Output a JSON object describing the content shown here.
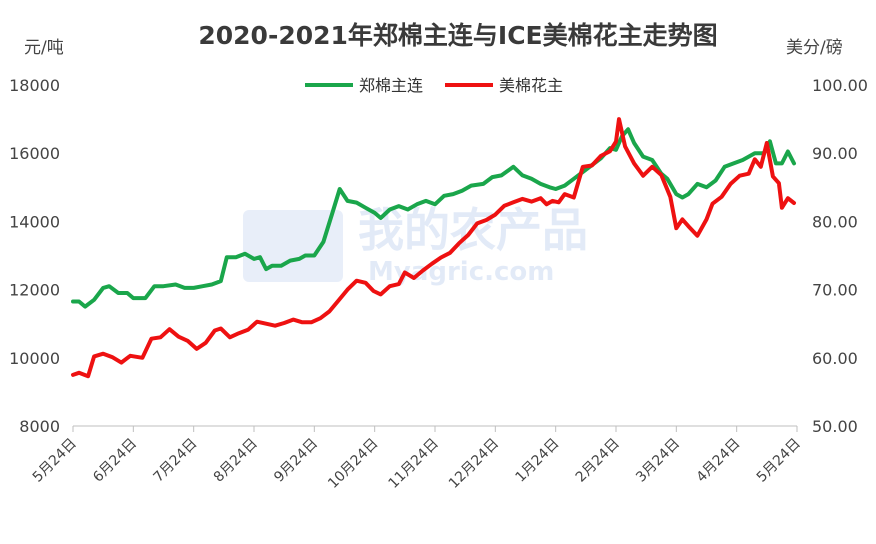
{
  "chart_data": {
    "type": "line",
    "title": "2020-2021年郑棉主连与ICE美棉花主走势图",
    "y_left_unit": "元/吨",
    "y_right_unit": "美分/磅",
    "ylim_left": [
      8000,
      18000
    ],
    "ylim_right": [
      50,
      100
    ],
    "yticks_left": [
      "8000",
      "10000",
      "12000",
      "14000",
      "16000",
      "18000"
    ],
    "yticks_right": [
      "50.00",
      "60.00",
      "70.00",
      "80.00",
      "90.00",
      "100.00"
    ],
    "x_ticks": [
      "5月24日",
      "6月24日",
      "7月24日",
      "8月24日",
      "9月24日",
      "10月24日",
      "11月24日",
      "12月24日",
      "1月24日",
      "2月24日",
      "3月24日",
      "4月24日",
      "5月24日"
    ],
    "grid": false,
    "legend_position": "top-center",
    "series": [
      {
        "name": "郑棉主连",
        "axis": "left",
        "color": "#1aa64b",
        "points": [
          [
            0,
            11650
          ],
          [
            0.1,
            11650
          ],
          [
            0.2,
            11500
          ],
          [
            0.35,
            11700
          ],
          [
            0.5,
            12050
          ],
          [
            0.6,
            12100
          ],
          [
            0.75,
            11900
          ],
          [
            0.9,
            11900
          ],
          [
            1.0,
            11750
          ],
          [
            1.2,
            11750
          ],
          [
            1.35,
            12100
          ],
          [
            1.5,
            12100
          ],
          [
            1.7,
            12150
          ],
          [
            1.85,
            12050
          ],
          [
            2.0,
            12050
          ],
          [
            2.15,
            12100
          ],
          [
            2.3,
            12150
          ],
          [
            2.45,
            12250
          ],
          [
            2.55,
            12950
          ],
          [
            2.7,
            12950
          ],
          [
            2.85,
            13050
          ],
          [
            3.0,
            12900
          ],
          [
            3.1,
            12950
          ],
          [
            3.2,
            12600
          ],
          [
            3.3,
            12700
          ],
          [
            3.45,
            12700
          ],
          [
            3.6,
            12850
          ],
          [
            3.75,
            12900
          ],
          [
            3.85,
            13000
          ],
          [
            4.0,
            13000
          ],
          [
            4.15,
            13400
          ],
          [
            4.3,
            14250
          ],
          [
            4.42,
            14950
          ],
          [
            4.55,
            14600
          ],
          [
            4.7,
            14550
          ],
          [
            4.85,
            14400
          ],
          [
            5.0,
            14250
          ],
          [
            5.1,
            14100
          ],
          [
            5.25,
            14350
          ],
          [
            5.4,
            14450
          ],
          [
            5.55,
            14350
          ],
          [
            5.7,
            14500
          ],
          [
            5.85,
            14600
          ],
          [
            6.0,
            14500
          ],
          [
            6.15,
            14750
          ],
          [
            6.3,
            14800
          ],
          [
            6.45,
            14900
          ],
          [
            6.6,
            15050
          ],
          [
            6.8,
            15100
          ],
          [
            6.95,
            15300
          ],
          [
            7.1,
            15350
          ],
          [
            7.3,
            15600
          ],
          [
            7.45,
            15350
          ],
          [
            7.6,
            15250
          ],
          [
            7.75,
            15100
          ],
          [
            7.9,
            15000
          ],
          [
            8.0,
            14950
          ],
          [
            8.15,
            15050
          ],
          [
            8.3,
            15250
          ],
          [
            8.45,
            15450
          ],
          [
            8.6,
            15650
          ],
          [
            8.75,
            15850
          ],
          [
            8.9,
            16150
          ],
          [
            9.0,
            16100
          ],
          [
            9.1,
            16500
          ],
          [
            9.2,
            16700
          ],
          [
            9.3,
            16300
          ],
          [
            9.45,
            15900
          ],
          [
            9.6,
            15800
          ],
          [
            9.75,
            15400
          ],
          [
            9.85,
            15250
          ],
          [
            10.0,
            14800
          ],
          [
            10.1,
            14700
          ],
          [
            10.2,
            14800
          ],
          [
            10.35,
            15100
          ],
          [
            10.5,
            15000
          ],
          [
            10.65,
            15200
          ],
          [
            10.8,
            15600
          ],
          [
            10.95,
            15700
          ],
          [
            11.1,
            15800
          ],
          [
            11.3,
            16000
          ],
          [
            11.45,
            16000
          ],
          [
            11.55,
            16350
          ],
          [
            11.65,
            15700
          ],
          [
            11.75,
            15700
          ],
          [
            11.85,
            16050
          ],
          [
            11.95,
            15700
          ]
        ]
      },
      {
        "name": "美棉花主",
        "axis": "right",
        "color": "#ee1111",
        "points": [
          [
            0,
            57.5
          ],
          [
            0.1,
            57.8
          ],
          [
            0.25,
            57.3
          ],
          [
            0.35,
            60.2
          ],
          [
            0.5,
            60.6
          ],
          [
            0.65,
            60.1
          ],
          [
            0.8,
            59.3
          ],
          [
            0.95,
            60.3
          ],
          [
            1.15,
            60.0
          ],
          [
            1.3,
            62.8
          ],
          [
            1.45,
            63.0
          ],
          [
            1.6,
            64.2
          ],
          [
            1.75,
            63.1
          ],
          [
            1.9,
            62.5
          ],
          [
            2.05,
            61.3
          ],
          [
            2.2,
            62.2
          ],
          [
            2.35,
            64.0
          ],
          [
            2.45,
            64.3
          ],
          [
            2.6,
            63.0
          ],
          [
            2.75,
            63.6
          ],
          [
            2.9,
            64.1
          ],
          [
            3.05,
            65.3
          ],
          [
            3.2,
            65.0
          ],
          [
            3.35,
            64.7
          ],
          [
            3.5,
            65.1
          ],
          [
            3.65,
            65.6
          ],
          [
            3.8,
            65.2
          ],
          [
            3.95,
            65.2
          ],
          [
            4.1,
            65.8
          ],
          [
            4.25,
            66.8
          ],
          [
            4.4,
            68.4
          ],
          [
            4.55,
            70.0
          ],
          [
            4.7,
            71.3
          ],
          [
            4.85,
            71.0
          ],
          [
            4.98,
            69.8
          ],
          [
            5.1,
            69.3
          ],
          [
            5.25,
            70.5
          ],
          [
            5.4,
            70.8
          ],
          [
            5.5,
            72.5
          ],
          [
            5.65,
            71.7
          ],
          [
            5.8,
            72.8
          ],
          [
            5.95,
            73.8
          ],
          [
            6.1,
            74.7
          ],
          [
            6.25,
            75.4
          ],
          [
            6.4,
            76.8
          ],
          [
            6.55,
            78.0
          ],
          [
            6.7,
            79.7
          ],
          [
            6.85,
            80.2
          ],
          [
            7.0,
            81.0
          ],
          [
            7.15,
            82.3
          ],
          [
            7.3,
            82.8
          ],
          [
            7.45,
            83.3
          ],
          [
            7.6,
            82.9
          ],
          [
            7.75,
            83.4
          ],
          [
            7.85,
            82.5
          ],
          [
            7.95,
            83.0
          ],
          [
            8.05,
            82.8
          ],
          [
            8.15,
            84.0
          ],
          [
            8.3,
            83.5
          ],
          [
            8.45,
            88.0
          ],
          [
            8.6,
            88.2
          ],
          [
            8.75,
            89.6
          ],
          [
            8.9,
            90.3
          ],
          [
            9.0,
            91.7
          ],
          [
            9.05,
            95.0
          ],
          [
            9.15,
            91.0
          ],
          [
            9.3,
            88.5
          ],
          [
            9.45,
            86.7
          ],
          [
            9.6,
            88.0
          ],
          [
            9.75,
            86.8
          ],
          [
            9.9,
            83.6
          ],
          [
            10.0,
            79.0
          ],
          [
            10.1,
            80.3
          ],
          [
            10.2,
            79.3
          ],
          [
            10.35,
            77.9
          ],
          [
            10.5,
            80.3
          ],
          [
            10.6,
            82.6
          ],
          [
            10.75,
            83.6
          ],
          [
            10.9,
            85.5
          ],
          [
            11.05,
            86.7
          ],
          [
            11.2,
            87.0
          ],
          [
            11.3,
            89.1
          ],
          [
            11.4,
            88.0
          ],
          [
            11.5,
            91.5
          ],
          [
            11.6,
            86.6
          ],
          [
            11.7,
            85.6
          ],
          [
            11.75,
            82.0
          ],
          [
            11.85,
            83.4
          ],
          [
            11.95,
            82.7
          ]
        ]
      }
    ]
  },
  "watermark": {
    "cn": "我的农产品",
    "en": "Myagric.com"
  }
}
